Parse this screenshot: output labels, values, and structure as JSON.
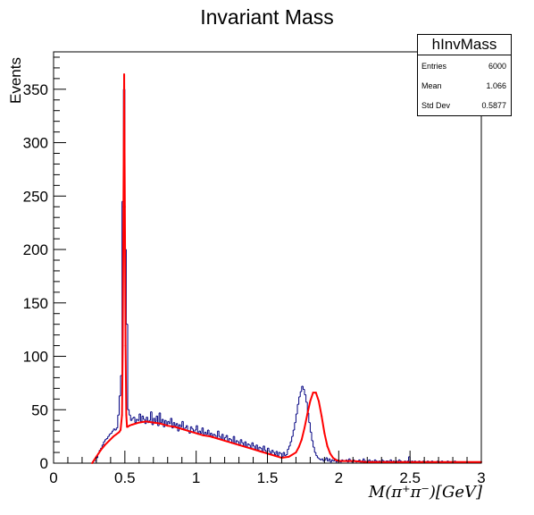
{
  "chart_data": {
    "type": "histogram",
    "title": "Invariant Mass",
    "xlabel": "M(π⁺π⁻)[GeV]",
    "ylabel": "Events",
    "xlim": [
      0,
      3
    ],
    "ylim": [
      0,
      385
    ],
    "x_ticks": [
      "0",
      "0.5",
      "1",
      "1.5",
      "2",
      "2.5",
      "3"
    ],
    "y_ticks": [
      "0",
      "50",
      "100",
      "150",
      "200",
      "250",
      "300",
      "350"
    ],
    "bin_width": 0.01,
    "histogram": {
      "name": "hInvMass",
      "color": "#000080",
      "bin_centers": [
        0.295,
        0.305,
        0.315,
        0.325,
        0.335,
        0.345,
        0.355,
        0.365,
        0.375,
        0.385,
        0.395,
        0.405,
        0.415,
        0.425,
        0.435,
        0.445,
        0.455,
        0.465,
        0.475,
        0.485,
        0.495,
        0.505,
        0.515,
        0.525,
        0.535,
        0.545,
        0.555,
        0.565,
        0.575,
        0.585,
        0.595,
        0.605,
        0.615,
        0.625,
        0.635,
        0.645,
        0.655,
        0.665,
        0.675,
        0.685,
        0.695,
        0.705,
        0.715,
        0.725,
        0.735,
        0.745,
        0.755,
        0.765,
        0.775,
        0.785,
        0.795,
        0.805,
        0.815,
        0.825,
        0.835,
        0.845,
        0.855,
        0.865,
        0.875,
        0.885,
        0.895,
        0.905,
        0.915,
        0.925,
        0.935,
        0.945,
        0.955,
        0.965,
        0.975,
        0.985,
        0.995,
        1.005,
        1.015,
        1.025,
        1.035,
        1.045,
        1.055,
        1.065,
        1.075,
        1.085,
        1.095,
        1.105,
        1.115,
        1.125,
        1.135,
        1.145,
        1.155,
        1.165,
        1.175,
        1.185,
        1.195,
        1.205,
        1.215,
        1.225,
        1.235,
        1.245,
        1.255,
        1.265,
        1.275,
        1.285,
        1.295,
        1.305,
        1.315,
        1.325,
        1.335,
        1.345,
        1.355,
        1.365,
        1.375,
        1.385,
        1.395,
        1.405,
        1.415,
        1.425,
        1.435,
        1.445,
        1.455,
        1.465,
        1.475,
        1.485,
        1.495,
        1.505,
        1.515,
        1.525,
        1.535,
        1.545,
        1.555,
        1.565,
        1.575,
        1.585,
        1.595,
        1.605,
        1.615,
        1.625,
        1.635,
        1.645,
        1.655,
        1.665,
        1.675,
        1.685,
        1.695,
        1.705,
        1.715,
        1.725,
        1.735,
        1.745,
        1.755,
        1.765,
        1.775,
        1.785,
        1.795,
        1.805,
        1.815,
        1.825,
        1.835,
        1.845,
        1.855,
        1.865,
        1.875,
        1.885,
        1.895,
        1.905,
        1.915,
        1.925,
        1.935,
        1.945,
        1.955,
        1.965,
        1.975,
        1.985,
        1.995,
        2.005,
        2.015,
        2.025,
        2.035,
        2.045,
        2.055,
        2.065,
        2.075,
        2.085,
        2.095,
        2.105,
        2.115,
        2.125,
        2.135,
        2.145,
        2.155,
        2.165,
        2.175,
        2.185,
        2.195,
        2.205,
        2.215,
        2.225,
        2.235,
        2.245,
        2.255,
        2.265,
        2.275,
        2.285,
        2.295,
        2.305,
        2.315,
        2.325,
        2.335,
        2.345,
        2.355,
        2.365,
        2.375,
        2.385,
        2.395,
        2.405,
        2.415,
        2.425,
        2.435,
        2.445,
        2.455,
        2.465,
        2.475,
        2.485,
        2.495,
        2.505,
        2.515,
        2.525,
        2.535,
        2.545,
        2.555,
        2.565,
        2.575,
        2.585,
        2.595,
        2.605,
        2.615,
        2.625,
        2.635,
        2.645,
        2.655,
        2.665,
        2.675,
        2.685,
        2.695,
        2.705,
        2.715,
        2.725,
        2.735,
        2.745,
        2.755,
        2.765,
        2.775,
        2.785,
        2.795,
        2.805,
        2.815,
        2.825,
        2.835,
        2.845,
        2.855,
        2.865,
        2.875,
        2.885,
        2.895,
        2.905,
        2.915,
        2.925,
        2.935,
        2.945,
        2.955,
        2.965,
        2.975,
        2.985,
        2.995
      ],
      "counts": [
        2,
        5,
        9,
        12,
        14,
        17,
        20,
        22,
        23,
        25,
        27,
        28,
        30,
        32,
        31,
        33,
        45,
        63,
        82,
        245,
        350,
        200,
        130,
        50,
        45,
        40,
        42,
        43,
        38,
        41,
        40,
        46,
        39,
        44,
        41,
        37,
        43,
        38,
        40,
        48,
        36,
        42,
        39,
        44,
        35,
        47,
        38,
        41,
        34,
        40,
        36,
        39,
        37,
        42,
        33,
        38,
        35,
        37,
        30,
        36,
        34,
        39,
        31,
        33,
        35,
        30,
        28,
        34,
        32,
        29,
        31,
        35,
        27,
        30,
        28,
        33,
        26,
        29,
        27,
        31,
        25,
        28,
        24,
        27,
        26,
        23,
        30,
        25,
        22,
        27,
        21,
        24,
        26,
        20,
        23,
        22,
        19,
        25,
        18,
        21,
        20,
        17,
        22,
        19,
        16,
        20,
        15,
        18,
        17,
        14,
        19,
        16,
        13,
        17,
        12,
        15,
        14,
        11,
        16,
        12,
        10,
        14,
        11,
        9,
        12,
        10,
        8,
        11,
        7,
        10,
        9,
        6,
        10,
        7,
        8,
        13,
        16,
        20,
        25,
        31,
        38,
        46,
        55,
        62,
        67,
        72,
        69,
        64,
        57,
        47,
        38,
        29,
        21,
        15,
        10,
        7,
        5,
        4,
        3,
        4,
        2,
        3,
        5,
        2,
        4,
        1,
        3,
        2,
        4,
        1,
        3,
        2,
        1,
        3,
        2,
        2,
        3,
        1,
        4,
        2,
        1,
        3,
        2,
        1,
        2,
        3,
        1,
        2,
        4,
        2,
        1,
        2,
        3,
        1,
        2,
        1,
        3,
        2,
        1,
        2,
        1,
        3,
        2,
        1,
        2,
        2,
        1,
        3,
        1,
        2,
        1,
        2,
        1,
        3,
        2,
        1,
        1,
        2,
        1,
        2,
        6,
        1,
        2,
        1,
        2,
        1,
        1,
        2,
        1,
        1,
        2,
        1,
        1,
        2,
        1,
        1,
        2,
        1,
        1,
        1,
        2,
        1,
        1,
        2,
        1,
        1,
        1,
        2,
        1,
        1,
        1,
        1,
        2,
        1,
        1,
        1
      ]
    },
    "fit": {
      "name": "fit",
      "color": "#ff0000",
      "x": [
        0.27,
        0.3,
        0.33,
        0.36,
        0.39,
        0.42,
        0.44,
        0.46,
        0.47,
        0.48,
        0.485,
        0.49,
        0.495,
        0.5,
        0.505,
        0.51,
        0.515,
        0.52,
        0.53,
        0.55,
        0.6,
        0.65,
        0.7,
        0.75,
        0.8,
        0.85,
        0.9,
        0.95,
        1.0,
        1.05,
        1.1,
        1.15,
        1.2,
        1.25,
        1.3,
        1.35,
        1.4,
        1.45,
        1.5,
        1.55,
        1.6,
        1.65,
        1.7,
        1.72,
        1.74,
        1.76,
        1.78,
        1.8,
        1.82,
        1.84,
        1.86,
        1.88,
        1.9,
        1.92,
        1.94,
        1.96,
        1.98,
        2.0,
        2.05,
        2.1,
        2.2,
        2.3,
        2.4,
        2.5,
        2.6,
        2.7,
        2.8,
        2.9,
        3.0
      ],
      "y": [
        0,
        6,
        12,
        17,
        21,
        25,
        27,
        29,
        31,
        45,
        110,
        240,
        364,
        240,
        110,
        45,
        34,
        34,
        35,
        36,
        38,
        39,
        38,
        37,
        35,
        34,
        32,
        30,
        28,
        26,
        25,
        23,
        21,
        19,
        17,
        15,
        13,
        11,
        9,
        7,
        5,
        6,
        10,
        15,
        22,
        33,
        46,
        58,
        66,
        66,
        58,
        44,
        28,
        16,
        9,
        5,
        3,
        2,
        2,
        2,
        1,
        1,
        1,
        1,
        1,
        1,
        1,
        1,
        1
      ]
    }
  },
  "title": "Invariant Mass",
  "stats": {
    "name": "hInvMass",
    "entries_label": "Entries",
    "entries_value": "6000",
    "mean_label": "Mean",
    "mean_value": "1.066",
    "stddev_label": "Std Dev",
    "stddev_value": "0.5877"
  },
  "axes": {
    "ylabel": "Events",
    "xlabel": "M(π⁺π⁻)[GeV]"
  }
}
